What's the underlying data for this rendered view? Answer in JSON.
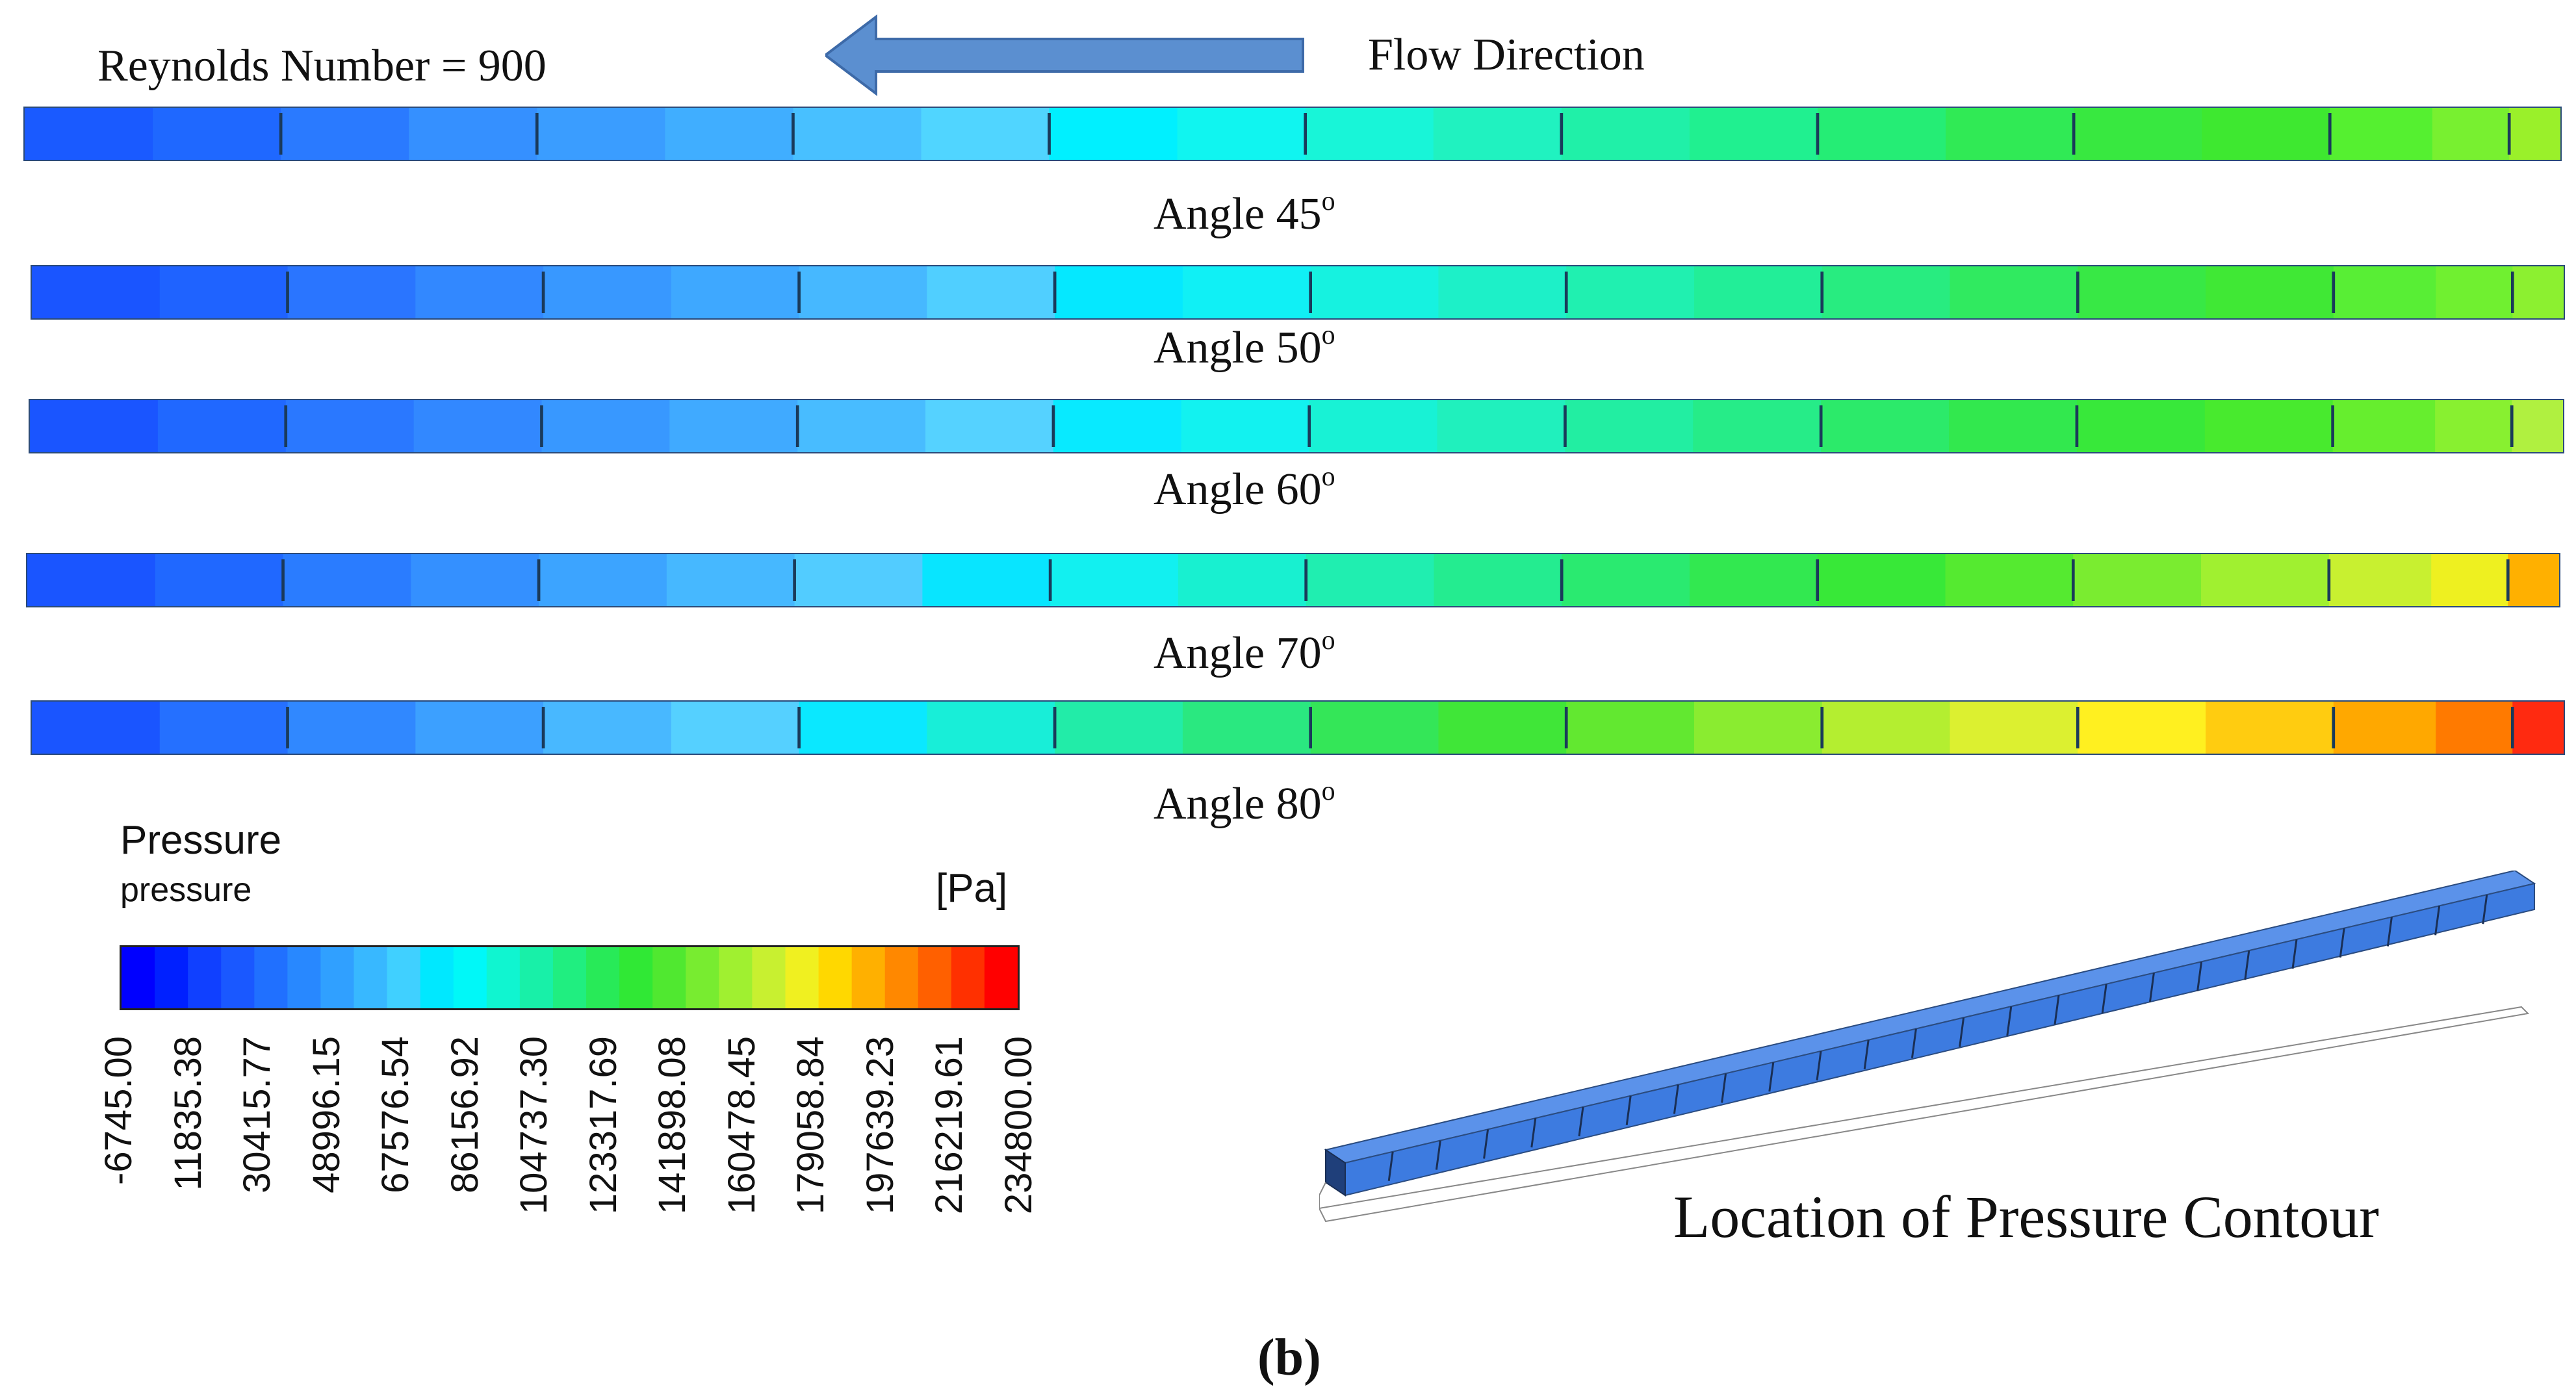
{
  "header": {
    "reynolds_label": "Reynolds Number = 900",
    "flow_label": "Flow Direction",
    "arrow_icon": "left-arrow-icon",
    "arrow_color": "#5b8fd0"
  },
  "contours": [
    {
      "label": "Angle 45",
      "degree_mark": "o",
      "colors": [
        "#1a5aff",
        "#1f68ff",
        "#2a7aff",
        "#3590ff",
        "#3a9dff",
        "#40aeff",
        "#48c0ff",
        "#50d5ff",
        "#00f0ff",
        "#10f5f0",
        "#18f5d8",
        "#20f2c0",
        "#20f0a8",
        "#20f090",
        "#25ed75",
        "#30ea55",
        "#38e840",
        "#3ee830",
        "#55f030",
        "#78f030",
        "#9af02a"
      ],
      "segments": [
        0.05,
        0.05,
        0.05,
        0.05,
        0.05,
        0.05,
        0.05,
        0.05,
        0.05,
        0.05,
        0.05,
        0.05,
        0.05,
        0.05,
        0.05,
        0.05,
        0.05,
        0.05,
        0.04,
        0.03,
        0.02
      ]
    },
    {
      "label": "Angle 50",
      "degree_mark": "o",
      "colors": [
        "#1a55ff",
        "#1f63ff",
        "#2a75ff",
        "#3288ff",
        "#3898ff",
        "#3ea8ff",
        "#46b8ff",
        "#50cfff",
        "#05e8ff",
        "#10f0f5",
        "#16f2e0",
        "#1df0c8",
        "#20f0b0",
        "#22ee98",
        "#28ec80",
        "#30ea60",
        "#38e845",
        "#40e835",
        "#58ee35",
        "#70f030",
        "#8cf030"
      ],
      "segments": [
        0.05,
        0.05,
        0.05,
        0.05,
        0.05,
        0.05,
        0.05,
        0.05,
        0.05,
        0.05,
        0.05,
        0.05,
        0.05,
        0.05,
        0.05,
        0.05,
        0.05,
        0.05,
        0.04,
        0.03,
        0.02
      ]
    },
    {
      "label": "Angle 60",
      "degree_mark": "o",
      "colors": [
        "#1a55ff",
        "#2068ff",
        "#2a78ff",
        "#3288ff",
        "#3898ff",
        "#40aaff",
        "#48bcff",
        "#55d2ff",
        "#08eaff",
        "#12f2f0",
        "#18f2d5",
        "#20f0bd",
        "#22eea2",
        "#26ec88",
        "#2cea6a",
        "#32e84e",
        "#38e83a",
        "#48ea2e",
        "#66ee2e",
        "#88f030",
        "#b0f040"
      ],
      "segments": [
        0.05,
        0.05,
        0.05,
        0.05,
        0.05,
        0.05,
        0.05,
        0.05,
        0.05,
        0.05,
        0.05,
        0.05,
        0.05,
        0.05,
        0.05,
        0.05,
        0.05,
        0.05,
        0.04,
        0.03,
        0.02
      ]
    },
    {
      "label": "Angle 70",
      "degree_mark": "o",
      "colors": [
        "#1a55ff",
        "#2068ff",
        "#2a7cff",
        "#3490ff",
        "#3ca4ff",
        "#46b8ff",
        "#52ccff",
        "#08e5ff",
        "#12f0f0",
        "#18f0d0",
        "#20eeb0",
        "#24ec90",
        "#2aea70",
        "#32e850",
        "#38e838",
        "#55ea30",
        "#7aec30",
        "#a0f030",
        "#c8f030",
        "#eef020",
        "#ffb000"
      ],
      "segments": [
        0.05,
        0.05,
        0.05,
        0.05,
        0.05,
        0.05,
        0.05,
        0.05,
        0.05,
        0.05,
        0.05,
        0.05,
        0.05,
        0.05,
        0.05,
        0.05,
        0.05,
        0.05,
        0.04,
        0.03,
        0.02
      ]
    },
    {
      "label": "Angle 80",
      "degree_mark": "o",
      "colors": [
        "#1a55ff",
        "#2570ff",
        "#3088ff",
        "#3ca0ff",
        "#48b8ff",
        "#55d0ff",
        "#0ae8ff",
        "#18eed8",
        "#22eca8",
        "#2ae880",
        "#34e658",
        "#40e638",
        "#62e830",
        "#8aec30",
        "#b4ee30",
        "#dcf030",
        "#fff020",
        "#ffcc10",
        "#ffa800",
        "#ff7a00",
        "#ff2a10"
      ],
      "segments": [
        0.05,
        0.05,
        0.05,
        0.05,
        0.05,
        0.05,
        0.05,
        0.05,
        0.05,
        0.05,
        0.05,
        0.05,
        0.05,
        0.05,
        0.05,
        0.05,
        0.05,
        0.05,
        0.04,
        0.03,
        0.02
      ]
    }
  ],
  "legend": {
    "title": "Pressure",
    "variable": "pressure",
    "unit": "[Pa]",
    "scale_colors": [
      "#0000ff",
      "#0020ff",
      "#1040ff",
      "#1a58ff",
      "#2070ff",
      "#2888ff",
      "#30a0ff",
      "#38b8ff",
      "#40d0ff",
      "#00e8ff",
      "#00f8f8",
      "#10f5d0",
      "#18f0a8",
      "#20ee80",
      "#28ea58",
      "#30e835",
      "#50e830",
      "#78ec30",
      "#a0f030",
      "#c8f030",
      "#f0f020",
      "#ffd800",
      "#ffb000",
      "#ff8800",
      "#ff6000",
      "#ff3000",
      "#ff0000"
    ],
    "ticks": [
      "-6745.00",
      "11835.38",
      "30415.77",
      "48996.15",
      "67576.54",
      "86156.92",
      "104737.30",
      "123317.69",
      "141898.08",
      "160478.45",
      "179058.84",
      "197639.23",
      "216219.61",
      "234800.00"
    ]
  },
  "location": {
    "label": "Location of Pressure Contour",
    "duct_color": "#3d7be0"
  },
  "caption": {
    "text": "(b)"
  }
}
